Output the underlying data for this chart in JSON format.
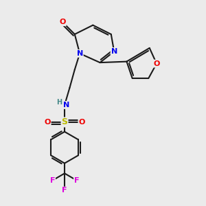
{
  "background_color": "#ebebeb",
  "bond_color": "#1a1a1a",
  "atom_colors": {
    "N": "#0000ee",
    "O": "#ee0000",
    "S": "#bbbb00",
    "F": "#dd00dd",
    "H": "#448888",
    "C": "#1a1a1a"
  },
  "figsize": [
    3.0,
    3.0
  ],
  "dpi": 100,
  "lw": 1.5
}
